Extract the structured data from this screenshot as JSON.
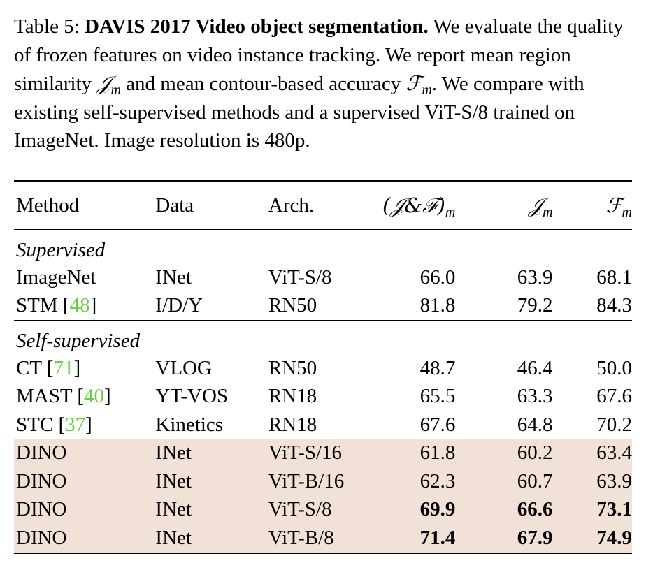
{
  "caption": {
    "label": "Table 5:",
    "title": "DAVIS 2017 Video object segmentation.",
    "line1_rest": "We evaluate",
    "line2": "the quality of frozen features on video instance tracking. We report",
    "line3_a": "mean region similarity",
    "line3_b": "and mean contour-based accuracy",
    "line4": "We compare with existing self-supervised methods and a supervised",
    "line5": "ViT-S/8 trained on ImageNet. Image resolution is 480p."
  },
  "table": {
    "headers": {
      "method": "Method",
      "data": "Data",
      "arch": "Arch.",
      "jf": "(𝒥&ℱ)",
      "j": "𝒥",
      "f": "ℱ",
      "sub": "m"
    },
    "groups": {
      "supervised": "Supervised",
      "self_supervised": "Self-supervised"
    },
    "supervised_rows": [
      {
        "method": "ImageNet",
        "ref": "",
        "data": "INet",
        "arch": "ViT-S/8",
        "jf": "66.0",
        "j": "63.9",
        "f": "68.1"
      },
      {
        "method": "STM",
        "ref": "48",
        "data": "I/D/Y",
        "arch": "RN50",
        "jf": "81.8",
        "j": "79.2",
        "f": "84.3"
      }
    ],
    "self_supervised_rows": [
      {
        "method": "CT",
        "ref": "71",
        "data": "VLOG",
        "arch": "RN50",
        "jf": "48.7",
        "j": "46.4",
        "f": "50.0"
      },
      {
        "method": "MAST",
        "ref": "40",
        "data": "YT-VOS",
        "arch": "RN18",
        "jf": "65.5",
        "j": "63.3",
        "f": "67.6"
      },
      {
        "method": "STC",
        "ref": "37",
        "data": "Kinetics",
        "arch": "RN18",
        "jf": "67.6",
        "j": "64.8",
        "f": "70.2"
      }
    ],
    "dino_rows": [
      {
        "method": "DINO",
        "data": "INet",
        "arch": "ViT-S/16",
        "jf": "61.8",
        "j": "60.2",
        "f": "63.4"
      },
      {
        "method": "DINO",
        "data": "INet",
        "arch": "ViT-B/16",
        "jf": "62.3",
        "j": "60.7",
        "f": "63.9"
      },
      {
        "method": "DINO",
        "data": "INet",
        "arch": "ViT-S/8",
        "jf": "69.9",
        "j": "66.6",
        "f": "73.1"
      },
      {
        "method": "DINO",
        "data": "INet",
        "arch": "ViT-B/8",
        "jf": "71.4",
        "j": "67.9",
        "f": "74.9"
      }
    ],
    "highlight_color": "#f2e1d6",
    "ref_color": "#66d140"
  }
}
